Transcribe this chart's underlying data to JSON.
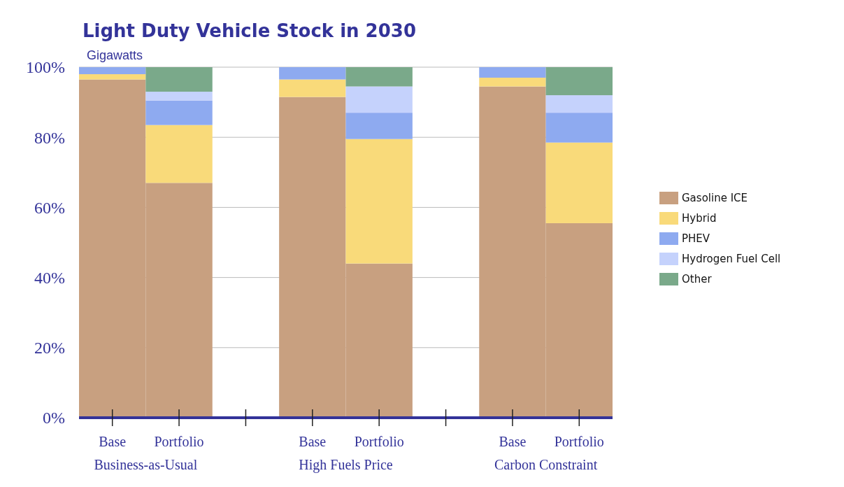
{
  "chart_data": {
    "type": "bar",
    "title": "Light Duty Vehicle Stock in 2030",
    "subtitle": "Gigawatts",
    "categories": [
      "Base",
      "Portfolio",
      null,
      "Base",
      "Portfolio",
      null,
      "Base",
      "Portfolio"
    ],
    "stacked": true,
    "series": [
      {
        "name": "Gasoline ICE",
        "color": "#c8a080",
        "values": [
          96.5,
          67,
          null,
          91.5,
          44,
          null,
          94.5,
          55.5
        ]
      },
      {
        "name": "Hybrid",
        "color": "#f9da7a",
        "values": [
          1.5,
          16.5,
          null,
          5,
          35.5,
          null,
          2.5,
          23
        ]
      },
      {
        "name": "PHEV",
        "color": "#8eaaf0",
        "values": [
          2,
          7,
          null,
          3.5,
          7.5,
          null,
          3,
          8.5
        ]
      },
      {
        "name": "Hydrogen Fuel Cell",
        "color": "#c5d2fc",
        "values": [
          0,
          2.5,
          null,
          0,
          7.5,
          null,
          0,
          5
        ]
      },
      {
        "name": "Other",
        "color": "#7aa98a",
        "values": [
          0,
          7,
          null,
          0,
          5.5,
          null,
          0,
          8
        ]
      }
    ],
    "ylim": [
      0,
      100
    ],
    "yticks": [
      {
        "value": 0,
        "label": "0%"
      },
      {
        "value": 20,
        "label": "20%"
      },
      {
        "value": 40,
        "label": "40%"
      },
      {
        "value": 60,
        "label": "60%"
      },
      {
        "value": 80,
        "label": "80%"
      },
      {
        "value": 100,
        "label": "100%"
      }
    ],
    "grid": "y",
    "legend": "right",
    "annotations": [
      "Business-as-Usual",
      "High Fuels Price",
      "Carbon Constraint"
    ]
  }
}
